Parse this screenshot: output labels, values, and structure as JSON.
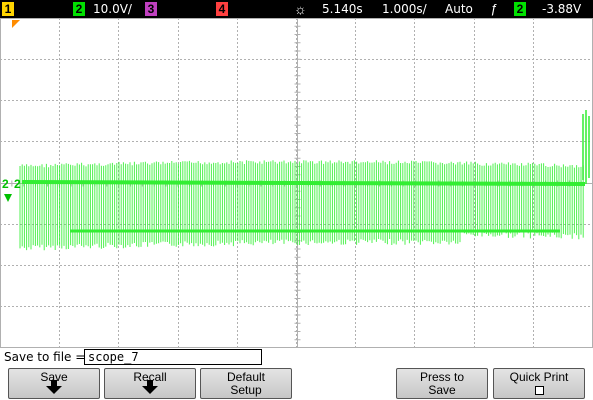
{
  "topbar": {
    "ch1": {
      "label": "1",
      "color": "#ffd400"
    },
    "ch2": {
      "label": "2",
      "color": "#00e000",
      "scale": "10.0V/"
    },
    "ch3": {
      "label": "3",
      "color": "#c040c0"
    },
    "ch4": {
      "label": "4",
      "color": "#ff4040"
    },
    "time_icon": "sun-icon",
    "delay": "5.140s",
    "timebase": "1.000s/",
    "trigger_mode": "Auto",
    "trigger_icon": "trigger-edge-icon",
    "trigger_source": "2",
    "trigger_level": "-3.88V"
  },
  "screen": {
    "background": "#ffffff",
    "grid_color": "#b0b0b0",
    "trace_color": "#33ee33",
    "channel_marker": "2"
  },
  "filebar": {
    "label": "Save to file =",
    "filename": "scope_7"
  },
  "softkeys": [
    {
      "line1": "Save",
      "line2": "",
      "icon": "arrow-down-icon"
    },
    {
      "line1": "Recall",
      "line2": "",
      "icon": "arrow-down-icon"
    },
    {
      "line1": "Default",
      "line2": "Setup",
      "icon": ""
    },
    {
      "line1": "Press to",
      "line2": "Save",
      "icon": ""
    },
    {
      "line1": "Quick Print",
      "line2": "",
      "icon": "checkbox-icon"
    }
  ]
}
